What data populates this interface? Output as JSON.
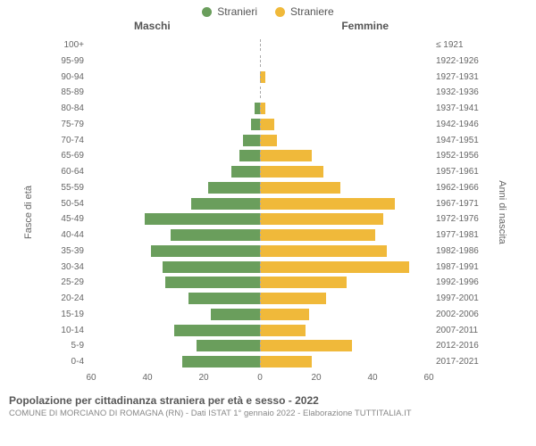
{
  "chart": {
    "type": "population-pyramid",
    "colors": {
      "male": "#6a9e5c",
      "female": "#f0b93a",
      "background": "#ffffff",
      "text": "#666666"
    },
    "fontsize": {
      "legend": 12,
      "header": 12,
      "row_label": 10,
      "axis": 10,
      "title": 12,
      "subtitle": 9.5
    },
    "legend": {
      "male": "Stranieri",
      "female": "Straniere"
    },
    "headers": {
      "left": "Maschi",
      "right": "Femmine"
    },
    "axis_titles": {
      "left": "Fasce di età",
      "right": "Anni di nascita"
    },
    "xlim": 60,
    "xticks_left": [
      "60",
      "40",
      "20",
      "0"
    ],
    "xticks_right": [
      "0",
      "20",
      "40",
      "60"
    ],
    "rows": [
      {
        "age": "100+",
        "birth": "≤ 1921",
        "m": 0,
        "f": 0
      },
      {
        "age": "95-99",
        "birth": "1922-1926",
        "m": 0,
        "f": 0
      },
      {
        "age": "90-94",
        "birth": "1927-1931",
        "m": 0,
        "f": 2
      },
      {
        "age": "85-89",
        "birth": "1932-1936",
        "m": 0,
        "f": 0
      },
      {
        "age": "80-84",
        "birth": "1937-1941",
        "m": 2,
        "f": 2
      },
      {
        "age": "75-79",
        "birth": "1942-1946",
        "m": 3,
        "f": 5
      },
      {
        "age": "70-74",
        "birth": "1947-1951",
        "m": 6,
        "f": 6
      },
      {
        "age": "65-69",
        "birth": "1952-1956",
        "m": 7,
        "f": 18
      },
      {
        "age": "60-64",
        "birth": "1957-1961",
        "m": 10,
        "f": 22
      },
      {
        "age": "55-59",
        "birth": "1962-1966",
        "m": 18,
        "f": 28
      },
      {
        "age": "50-54",
        "birth": "1967-1971",
        "m": 24,
        "f": 47
      },
      {
        "age": "45-49",
        "birth": "1972-1976",
        "m": 40,
        "f": 43
      },
      {
        "age": "40-44",
        "birth": "1977-1981",
        "m": 31,
        "f": 40
      },
      {
        "age": "35-39",
        "birth": "1982-1986",
        "m": 38,
        "f": 44
      },
      {
        "age": "30-34",
        "birth": "1987-1991",
        "m": 34,
        "f": 52
      },
      {
        "age": "25-29",
        "birth": "1992-1996",
        "m": 33,
        "f": 30
      },
      {
        "age": "20-24",
        "birth": "1997-2001",
        "m": 25,
        "f": 23
      },
      {
        "age": "15-19",
        "birth": "2002-2006",
        "m": 17,
        "f": 17
      },
      {
        "age": "10-14",
        "birth": "2007-2011",
        "m": 30,
        "f": 16
      },
      {
        "age": "5-9",
        "birth": "2012-2016",
        "m": 22,
        "f": 32
      },
      {
        "age": "0-4",
        "birth": "2017-2021",
        "m": 27,
        "f": 18
      }
    ]
  },
  "footer": {
    "title": "Popolazione per cittadinanza straniera per età e sesso - 2022",
    "subtitle": "COMUNE DI MORCIANO DI ROMAGNA (RN) - Dati ISTAT 1° gennaio 2022 - Elaborazione TUTTITALIA.IT"
  }
}
